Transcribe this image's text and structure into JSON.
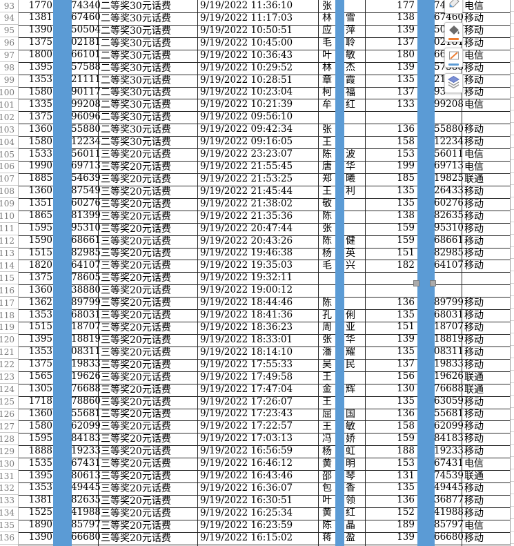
{
  "sheet": {
    "description": "lottery winners table with redacted phone columns",
    "date_shown": "9/19/2022",
    "prize_labels": {
      "second": "二等奖30元话费",
      "third": "三等奖20元话费"
    },
    "carriers_seen": [
      "电信",
      "移动",
      "联通"
    ]
  },
  "colors": {
    "redaction_blue": "#5B9BD5",
    "grid_dark": "#262626",
    "grid_light": "#c9c9c9",
    "gutter_text": "#7b7b7b",
    "accent_orange": "#ED7D31",
    "accent_blue": "#5B9BD5",
    "layers_blue": "#7b8fd4",
    "handle_gray": "#ababab"
  },
  "floating_toolbar": {
    "buttons": [
      {
        "name": "format-brush"
      },
      {
        "name": "fill-color"
      },
      {
        "name": "outline-color"
      },
      {
        "name": "layers"
      }
    ]
  },
  "redaction_bars": [
    "left-phone-bar",
    "name-bar",
    "right-phone-bar"
  ],
  "selection": {
    "selected_shape": "right-phone-bar",
    "handles": [
      "middle-left",
      "middle-right"
    ]
  },
  "rows": [
    {
      "n": "93",
      "p1": "1770",
      "f1": "74340",
      "prize": "二等奖30元话费",
      "time": "9/19/2022 11:36:10",
      "a": "张",
      "b": "",
      "p2": "177",
      "f2": "74",
      "car": "电信"
    },
    {
      "n": "94",
      "p1": "1381",
      "f1": "67460",
      "prize": "二等奖30元话费",
      "time": "9/19/2022 11:17:03",
      "a": "林",
      "b": "雪",
      "p2": "138",
      "f2": "67460",
      "car": "移动"
    },
    {
      "n": "95",
      "p1": "1390",
      "f1": "50504",
      "prize": "二等奖30元话费",
      "time": "9/19/2022 10:50:51",
      "a": "应",
      "b": "萍",
      "p2": "139",
      "f2": "50",
      "car": "移动"
    },
    {
      "n": "96",
      "p1": "1375",
      "f1": "02181",
      "prize": "二等奖30元话费",
      "time": "9/19/2022 10:45:00",
      "a": "毛",
      "b": "聆",
      "p2": "137",
      "f2": "02181",
      "car": "移动"
    },
    {
      "n": "97",
      "p1": "1800",
      "f1": "66101",
      "prize": "二等奖30元话费",
      "time": "9/19/2022 10:36:43",
      "a": "叶",
      "b": "敏",
      "p2": "180",
      "f2": "66",
      "car": "电信"
    },
    {
      "n": "98",
      "p1": "1395",
      "f1": "57588",
      "prize": "二等奖30元话费",
      "time": "9/19/2022 10:29:52",
      "a": "林",
      "b": "杰",
      "p2": "139",
      "f2": "57588",
      "car": "移动"
    },
    {
      "n": "99",
      "p1": "1353",
      "f1": "21111",
      "prize": "二等奖30元话费",
      "time": "9/19/2022 10:28:51",
      "a": "章",
      "b": "霞",
      "p2": "135",
      "f2": "21",
      "car": "移动"
    },
    {
      "n": "100",
      "p1": "1580",
      "f1": "90117",
      "prize": "二等奖30元话费",
      "time": "9/19/2022 10:23:04",
      "a": "柯",
      "b": "福",
      "p2": "137",
      "f2": "93",
      "car": "移动"
    },
    {
      "n": "101",
      "p1": "1335",
      "f1": "99208",
      "prize": "二等奖30元话费",
      "time": "9/19/2022 10:21:39",
      "a": "牟",
      "b": "红",
      "p2": "133",
      "f2": "99208",
      "car": "电信"
    },
    {
      "n": "102",
      "p1": "1375",
      "f1": "96096",
      "prize": "二等奖30元话费",
      "time": "9/19/2022 09:56:10",
      "a": "",
      "b": "",
      "p2": "",
      "f2": "",
      "car": ""
    },
    {
      "n": "103",
      "p1": "1360",
      "f1": "55880",
      "prize": "二等奖30元话费",
      "time": "9/19/2022 09:42:34",
      "a": "张",
      "b": "",
      "p2": "136",
      "f2": "55880",
      "car": "移动"
    },
    {
      "n": "104",
      "p1": "1580",
      "f1": "12234",
      "prize": "二等奖30元话费",
      "time": "9/19/2022 09:16:05",
      "a": "王",
      "b": "",
      "p2": "158",
      "f2": "12234",
      "car": "移动"
    },
    {
      "n": "105",
      "p1": "1533",
      "f1": "56011",
      "prize": "三等奖20元话费",
      "time": "9/19/2022 23:23:07",
      "a": "陈",
      "b": "波",
      "p2": "153",
      "f2": "56011",
      "car": "电信"
    },
    {
      "n": "106",
      "p1": "1990",
      "f1": "69713",
      "prize": "三等奖20元话费",
      "time": "9/19/2022 21:55:45",
      "a": "唐",
      "b": "华",
      "p2": "199",
      "f2": "69713",
      "car": "电信"
    },
    {
      "n": "107",
      "p1": "1885",
      "f1": "54639",
      "prize": "三等奖20元话费",
      "time": "9/19/2022 21:53:25",
      "a": "郑",
      "b": "曦",
      "p2": "185",
      "f2": "19825",
      "car": "联通"
    },
    {
      "n": "108",
      "p1": "1360",
      "f1": "87549",
      "prize": "三等奖20元话费",
      "time": "9/19/2022 21:45:44",
      "a": "王",
      "b": "利",
      "p2": "135",
      "f2": "26433",
      "car": "移动"
    },
    {
      "n": "109",
      "p1": "1351",
      "f1": "60276",
      "prize": "三等奖20元话费",
      "time": "9/19/2022 21:38:02",
      "a": "敬",
      "b": "",
      "p2": "135",
      "f2": "60276",
      "car": "移动"
    },
    {
      "n": "110",
      "p1": "1865",
      "f1": "81399",
      "prize": "三等奖20元话费",
      "time": "9/19/2022 21:35:36",
      "a": "陈",
      "b": "",
      "p2": "138",
      "f2": "82635",
      "car": "移动"
    },
    {
      "n": "111",
      "p1": "1595",
      "f1": "95310",
      "prize": "三等奖20元话费",
      "time": "9/19/2022 20:47:44",
      "a": "张",
      "b": "",
      "p2": "159",
      "f2": "95310",
      "car": "移动"
    },
    {
      "n": "112",
      "p1": "1590",
      "f1": "68661",
      "prize": "三等奖20元话费",
      "time": "9/19/2022 20:43:26",
      "a": "陈",
      "b": "健",
      "p2": "159",
      "f2": "68661",
      "car": "移动"
    },
    {
      "n": "113",
      "p1": "1515",
      "f1": "82985",
      "prize": "三等奖20元话费",
      "time": "9/19/2022 19:46:38",
      "a": "杨",
      "b": "英",
      "p2": "151",
      "f2": "82985",
      "car": "移动"
    },
    {
      "n": "114",
      "p1": "1820",
      "f1": "64107",
      "prize": "三等奖20元话费",
      "time": "9/19/2022 19:35:03",
      "a": "毛",
      "b": "兴",
      "p2": "182",
      "f2": "64107",
      "car": "移动"
    },
    {
      "n": "115",
      "p1": "1375",
      "f1": "78605",
      "prize": "三等奖20元话费",
      "time": "9/19/2022 19:32:11",
      "a": "",
      "b": "",
      "p2": "",
      "f2": "",
      "car": ""
    },
    {
      "n": "116",
      "p1": "1360",
      "f1": "38880",
      "prize": "三等奖20元话费",
      "time": "9/19/2022 19:00:12",
      "a": "",
      "b": "",
      "p2": "",
      "f2": "",
      "car": ""
    },
    {
      "n": "117",
      "p1": "1362",
      "f1": "89799",
      "prize": "三等奖20元话费",
      "time": "9/19/2022 18:44:46",
      "a": "陈",
      "b": "",
      "p2": "136",
      "f2": "89799",
      "car": "移动"
    },
    {
      "n": "118",
      "p1": "1353",
      "f1": "68031",
      "prize": "三等奖20元话费",
      "time": "9/19/2022 18:41:36",
      "a": "孔",
      "b": "俐",
      "p2": "135",
      "f2": "68031",
      "car": "移动"
    },
    {
      "n": "119",
      "p1": "1515",
      "f1": "18707",
      "prize": "三等奖20元话费",
      "time": "9/19/2022 18:36:23",
      "a": "周",
      "b": "亚",
      "p2": "151",
      "f2": "18707",
      "car": "移动"
    },
    {
      "n": "120",
      "p1": "1395",
      "f1": "18819",
      "prize": "三等奖20元话费",
      "time": "9/19/2022 18:33:01",
      "a": "张",
      "b": "华",
      "p2": "139",
      "f2": "18819",
      "car": "移动"
    },
    {
      "n": "121",
      "p1": "1353",
      "f1": "08311",
      "prize": "三等奖20元话费",
      "time": "9/19/2022 18:14:10",
      "a": "潘",
      "b": "耀",
      "p2": "135",
      "f2": "08311",
      "car": "移动"
    },
    {
      "n": "122",
      "p1": "1375",
      "f1": "19833",
      "prize": "三等奖20元话费",
      "time": "9/19/2022 17:55:33",
      "a": "吴",
      "b": "民",
      "p2": "137",
      "f2": "19833",
      "car": "移动"
    },
    {
      "n": "123",
      "p1": "1565",
      "f1": "19626",
      "prize": "三等奖20元话费",
      "time": "9/19/2022 17:49:58",
      "a": "王",
      "b": "",
      "p2": "156",
      "f2": "19626",
      "car": "联通"
    },
    {
      "n": "124",
      "p1": "1305",
      "f1": "76688",
      "prize": "三等奖20元话费",
      "time": "9/19/2022 17:47:04",
      "a": "金",
      "b": "辉",
      "p2": "130",
      "f2": "76688",
      "car": "联通"
    },
    {
      "n": "125",
      "p1": "1718",
      "f1": "78860",
      "prize": "三等奖20元话费",
      "time": "9/19/2022 17:26:07",
      "a": "王",
      "b": "",
      "p2": "135",
      "f2": "63059",
      "car": "移动"
    },
    {
      "n": "126",
      "p1": "1360",
      "f1": "55681",
      "prize": "三等奖20元话费",
      "time": "9/19/2022 17:23:43",
      "a": "屈",
      "b": "国",
      "p2": "136",
      "f2": "55681",
      "car": "移动"
    },
    {
      "n": "127",
      "p1": "1580",
      "f1": "62099",
      "prize": "三等奖20元话费",
      "time": "9/19/2022 17:22:57",
      "a": "王",
      "b": "敏",
      "p2": "158",
      "f2": "62099",
      "car": "移动"
    },
    {
      "n": "128",
      "p1": "1595",
      "f1": "84183",
      "prize": "三等奖20元话费",
      "time": "9/19/2022 17:03:13",
      "a": "冯",
      "b": "娇",
      "p2": "159",
      "f2": "84183",
      "car": "移动"
    },
    {
      "n": "129",
      "p1": "1888",
      "f1": "19233",
      "prize": "三等奖20元话费",
      "time": "9/19/2022 16:56:59",
      "a": "杨",
      "b": "虹",
      "p2": "188",
      "f2": "19233",
      "car": "移动"
    },
    {
      "n": "130",
      "p1": "1535",
      "f1": "67431",
      "prize": "三等奖20元话费",
      "time": "9/19/2022 16:46:12",
      "a": "黄",
      "b": "明",
      "p2": "153",
      "f2": "67431",
      "car": "电信"
    },
    {
      "n": "131",
      "p1": "1395",
      "f1": "80613",
      "prize": "三等奖20元话费",
      "time": "9/19/2022 16:43:46",
      "a": "邵",
      "b": "琴",
      "p2": "131",
      "f2": "74539",
      "car": "联通"
    },
    {
      "n": "132",
      "p1": "1353",
      "f1": "49445",
      "prize": "三等奖20元话费",
      "time": "9/19/2022 16:36:07",
      "a": "包",
      "b": "香",
      "p2": "135",
      "f2": "49445",
      "car": "移动"
    },
    {
      "n": "133",
      "p1": "1381",
      "f1": "82635",
      "prize": "三等奖20元话费",
      "time": "9/19/2022 16:30:51",
      "a": "叶",
      "b": "领",
      "p2": "136",
      "f2": "36877",
      "car": "移动"
    },
    {
      "n": "134",
      "p1": "1525",
      "f1": "41988",
      "prize": "三等奖20元话费",
      "time": "9/19/2022 16:25:34",
      "a": "黄",
      "b": "红",
      "p2": "152",
      "f2": "41988",
      "car": "移动"
    },
    {
      "n": "135",
      "p1": "1890",
      "f1": "85797",
      "prize": "三等奖20元话费",
      "time": "9/19/2022 16:23:59",
      "a": "陈",
      "b": "晶",
      "p2": "189",
      "f2": "85797",
      "car": "电信"
    },
    {
      "n": "136",
      "p1": "1390",
      "f1": "66680",
      "prize": "三等奖20元话费",
      "time": "9/19/2022 16:15:02",
      "a": "蒋",
      "b": "盈",
      "p2": "139",
      "f2": "66680",
      "car": "移动"
    }
  ]
}
